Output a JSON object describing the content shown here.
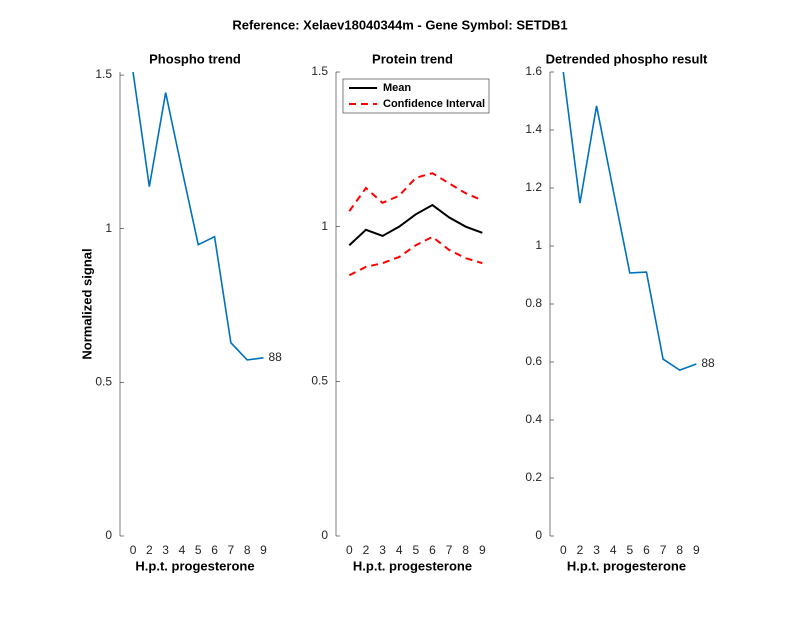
{
  "title": "Reference:  Xelaev18040344m - Gene Symbol:  SETDB1",
  "chart_data": [
    {
      "type": "line",
      "title": "Phospho trend",
      "xlabel": "H.p.t. progesterone",
      "ylabel": "Normalized signal",
      "categories": [
        "0",
        "2",
        "3",
        "4",
        "5",
        "6",
        "7",
        "8",
        "9"
      ],
      "series": [
        {
          "color": "#0072bd",
          "values": [
            1.51,
            1.137,
            1.443,
            1.192,
            0.948,
            0.974,
            0.629,
            0.573,
            0.58
          ]
        }
      ],
      "annotation": "88",
      "ylim": [
        0,
        1.51
      ],
      "yticks": [
        0,
        0.5,
        1,
        1.5
      ]
    },
    {
      "type": "band",
      "title": "Protein trend",
      "xlabel": "H.p.t. progesterone",
      "categories": [
        "0",
        "2",
        "3",
        "4",
        "5",
        "6",
        "7",
        "8",
        "9"
      ],
      "series": [
        {
          "name": "Mean",
          "color": "#000000",
          "values": [
            0.94,
            0.99,
            0.97,
            1.0,
            1.04,
            1.07,
            1.03,
            1.0,
            0.98
          ]
        },
        {
          "name": "Confidence Interval",
          "color": "#ff0000",
          "values": [
            1.05,
            1.125,
            1.077,
            1.1,
            1.158,
            1.173,
            1.14,
            1.108,
            1.085
          ],
          "lower_values": [
            0.843,
            0.87,
            0.882,
            0.902,
            0.94,
            0.967,
            0.925,
            0.898,
            0.882
          ]
        }
      ],
      "legend": "upper right",
      "ylim": [
        0,
        1.5
      ],
      "yticks": [
        0,
        0.5,
        1,
        1.5
      ]
    },
    {
      "type": "line",
      "title": "Detrended phospho result",
      "xlabel": "H.p.t. progesterone",
      "categories": [
        "0",
        "2",
        "3",
        "4",
        "5",
        "6",
        "7",
        "8",
        "9"
      ],
      "series": [
        {
          "color": "#0072bd",
          "values": [
            1.6,
            1.148,
            1.483,
            1.193,
            0.907,
            0.91,
            0.61,
            0.572,
            0.593
          ]
        }
      ],
      "annotation": "88",
      "ylim": [
        0,
        1.6
      ],
      "yticks": [
        0,
        0.2,
        0.4,
        0.6,
        0.8,
        1,
        1.2,
        1.4,
        1.6
      ]
    }
  ]
}
